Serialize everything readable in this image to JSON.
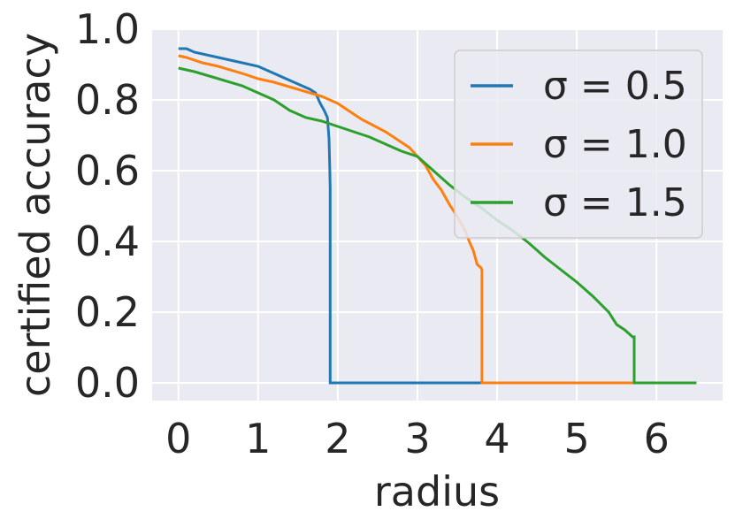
{
  "chart_data": {
    "type": "line",
    "title": "",
    "xlabel": "radius",
    "ylabel": "certified accuracy",
    "xlim": [
      -0.33,
      6.83
    ],
    "ylim": [
      -0.05,
      1.0
    ],
    "xticks": [
      0,
      1,
      2,
      3,
      4,
      5,
      6
    ],
    "yticks": [
      0.0,
      0.2,
      0.4,
      0.6,
      0.8,
      1.0
    ],
    "xtick_labels": [
      "0",
      "1",
      "2",
      "3",
      "4",
      "5",
      "6"
    ],
    "ytick_labels": [
      "0.0",
      "0.2",
      "0.4",
      "0.6",
      "0.8",
      "1.0"
    ],
    "grid": true,
    "legend_position": "top-right",
    "series": [
      {
        "name": "σ = 0.5",
        "color": "#1f77b4",
        "x": [
          0,
          0.1,
          0.2,
          0.4,
          0.6,
          0.8,
          1.0,
          1.2,
          1.4,
          1.55,
          1.65,
          1.72,
          1.78,
          1.83,
          1.87,
          1.89,
          1.9,
          1.905,
          1.905,
          6.5
        ],
        "y": [
          0.945,
          0.945,
          0.935,
          0.925,
          0.915,
          0.905,
          0.895,
          0.875,
          0.855,
          0.84,
          0.83,
          0.82,
          0.79,
          0.77,
          0.75,
          0.69,
          0.6,
          0.55,
          0.0,
          0.0
        ]
      },
      {
        "name": "σ = 1.0",
        "color": "#ff7f0e",
        "x": [
          0,
          0.1,
          0.3,
          0.5,
          0.8,
          1.0,
          1.2,
          1.5,
          1.8,
          2.0,
          2.3,
          2.6,
          2.9,
          3.1,
          3.2,
          3.3,
          3.4,
          3.5,
          3.6,
          3.65,
          3.7,
          3.75,
          3.8,
          3.81,
          3.81,
          6.5
        ],
        "y": [
          0.925,
          0.92,
          0.905,
          0.895,
          0.875,
          0.86,
          0.85,
          0.83,
          0.81,
          0.79,
          0.745,
          0.71,
          0.665,
          0.615,
          0.575,
          0.545,
          0.505,
          0.47,
          0.43,
          0.4,
          0.375,
          0.335,
          0.325,
          0.32,
          0.0,
          0.0
        ]
      },
      {
        "name": "σ = 1.5",
        "color": "#2ca02c",
        "x": [
          0,
          0.2,
          0.5,
          0.8,
          1.0,
          1.2,
          1.4,
          1.6,
          1.8,
          2.0,
          2.2,
          2.4,
          2.6,
          2.8,
          3.0,
          3.2,
          3.4,
          3.6,
          3.8,
          4.0,
          4.2,
          4.4,
          4.6,
          4.8,
          5.0,
          5.2,
          5.4,
          5.5,
          5.6,
          5.7,
          5.72,
          5.72,
          6.5
        ],
        "y": [
          0.89,
          0.88,
          0.86,
          0.84,
          0.82,
          0.8,
          0.77,
          0.75,
          0.74,
          0.725,
          0.71,
          0.695,
          0.675,
          0.655,
          0.64,
          0.6,
          0.56,
          0.525,
          0.495,
          0.46,
          0.43,
          0.395,
          0.355,
          0.32,
          0.285,
          0.245,
          0.2,
          0.165,
          0.15,
          0.13,
          0.13,
          0.0,
          0.0
        ]
      }
    ],
    "colors": {
      "plot_background": "#eaeaf2",
      "grid": "#ffffff",
      "text": "#262626"
    }
  }
}
